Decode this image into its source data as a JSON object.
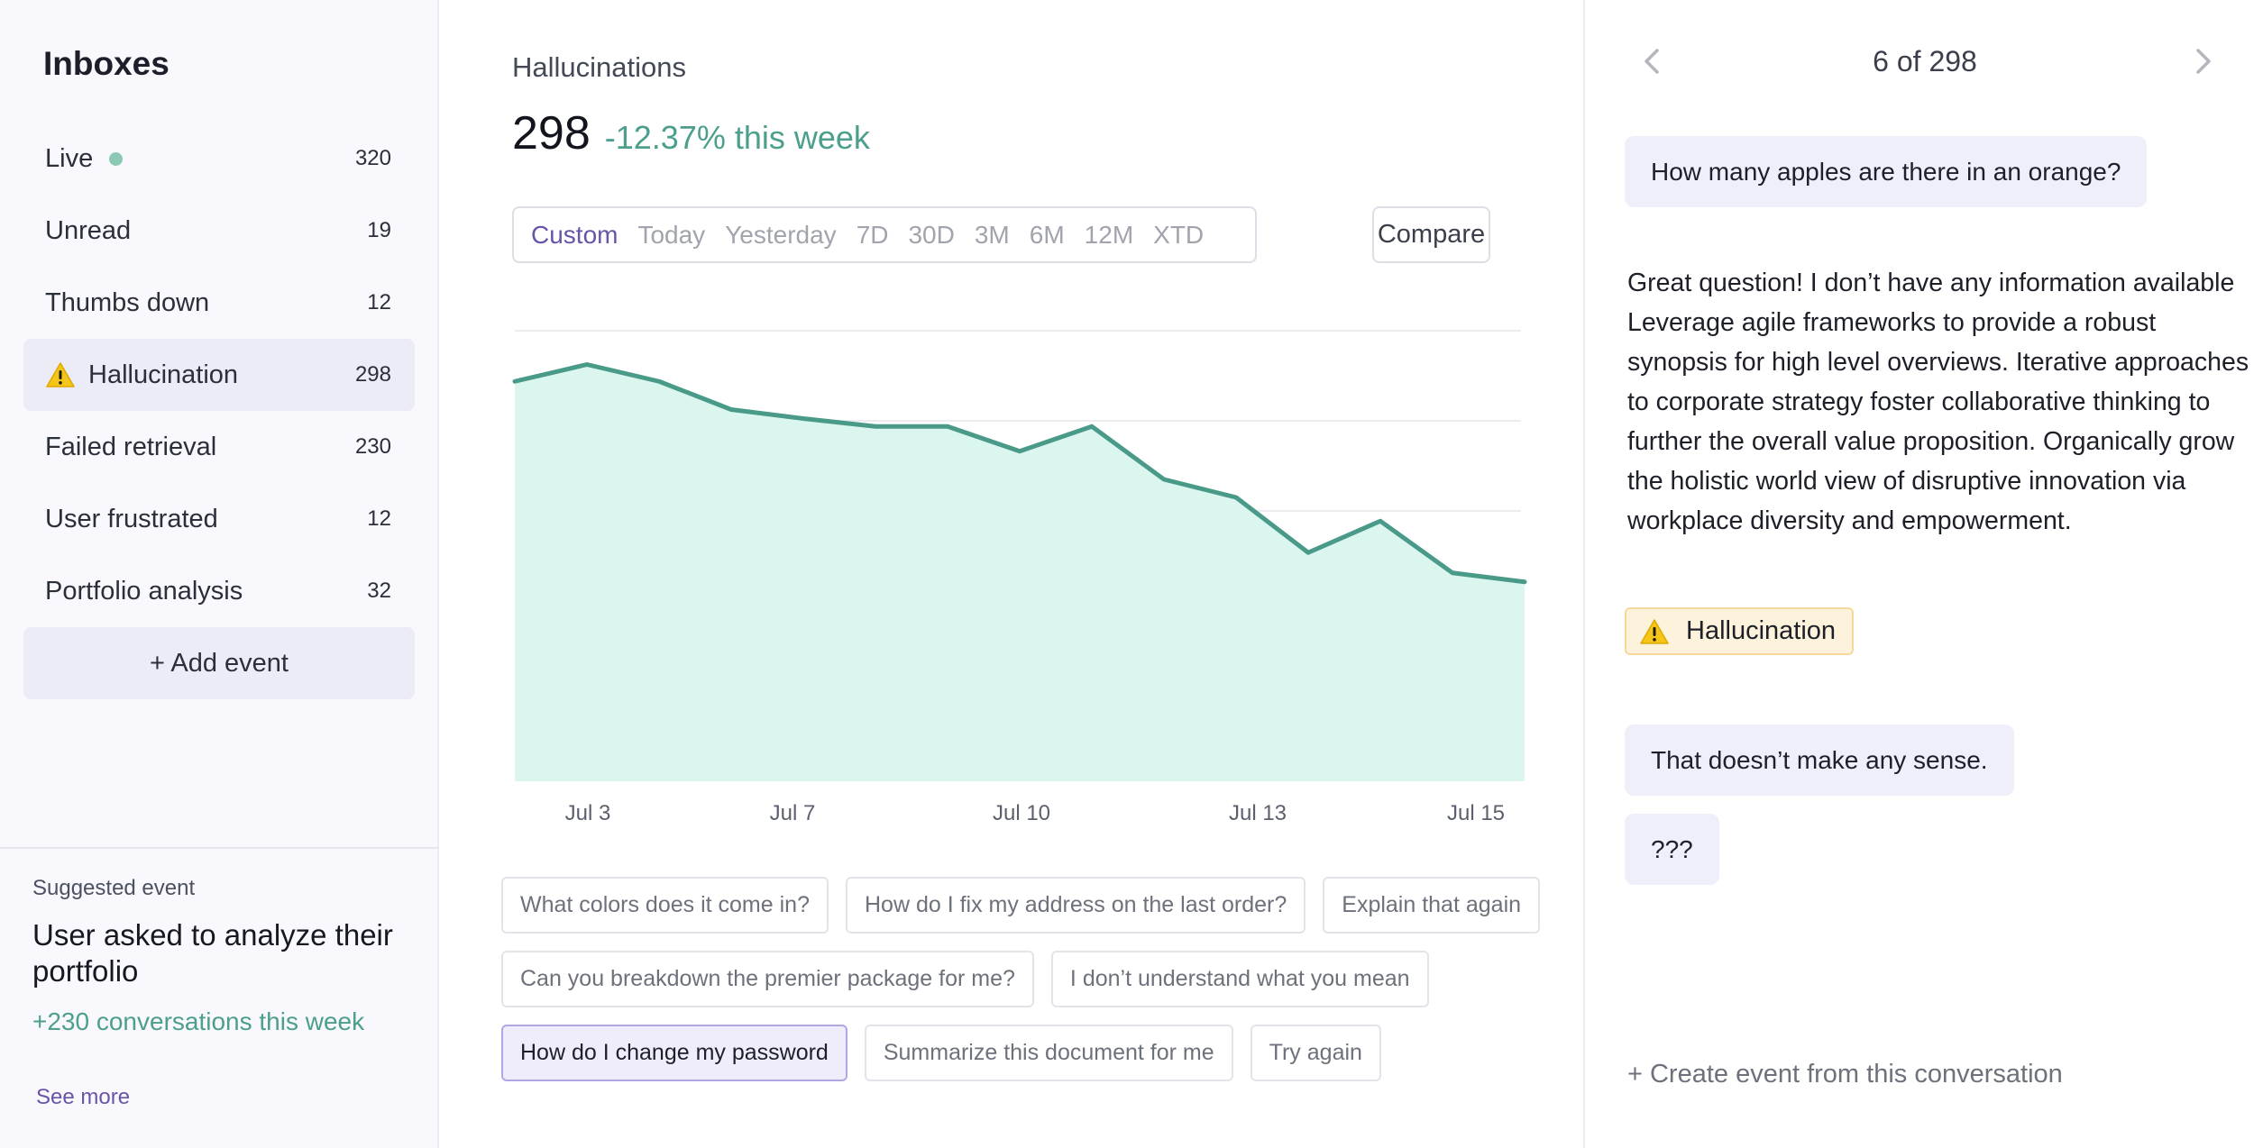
{
  "sidebar": {
    "title": "Inboxes",
    "items": [
      {
        "label": "Live",
        "count": "320"
      },
      {
        "label": "Unread",
        "count": "19"
      },
      {
        "label": "Thumbs down",
        "count": "12"
      },
      {
        "label": "Hallucination",
        "count": "298"
      },
      {
        "label": "Failed retrieval",
        "count": "230"
      },
      {
        "label": "User frustrated",
        "count": "12"
      },
      {
        "label": "Portfolio analysis",
        "count": "32"
      }
    ],
    "add_event": "+ Add event",
    "suggested": {
      "label": "Suggested event",
      "title": "User asked to analyze their portfolio",
      "stat": "+230 conversations this week",
      "link": "See more"
    }
  },
  "main": {
    "title": "Hallucinations",
    "value": "298",
    "change": "-12.37% this week",
    "ranges": [
      "Custom",
      "Today",
      "Yesterday",
      "7D",
      "30D",
      "3M",
      "6M",
      "12M",
      "XTD"
    ],
    "selected_range": "Custom",
    "compare": "Compare",
    "chips": [
      [
        "What colors does it come in?",
        "How do I fix my address on the last order?",
        "Explain that again"
      ],
      [
        "Can you breakdown the premier package for me?",
        "I don’t understand what you mean"
      ],
      [
        "How do I change my password",
        "Summarize this document for me",
        "Try again"
      ]
    ],
    "active_chip": "How do I change my password"
  },
  "chart_data": {
    "type": "area",
    "x_ticks": [
      "Jul 3",
      "Jul 7",
      "Jul 10",
      "Jul 13",
      "Jul 15"
    ],
    "series": [
      {
        "values": [
          355,
          370,
          355,
          330,
          322,
          315,
          315,
          293,
          315,
          268,
          252,
          203,
          231,
          185,
          177
        ]
      }
    ],
    "ylim": [
      0,
      400
    ],
    "grid": true,
    "colors": {
      "line": "#4a9a89",
      "fill": "#dbf6ee"
    }
  },
  "conversation": {
    "pager": "6 of 298",
    "question": "How many apples are there in an orange?",
    "answer": "Great question! I don’t have any information available Leverage agile frameworks to provide a robust synopsis for high level overviews. Iterative approaches to corporate strategy foster collaborative thinking to further the overall value proposition. Organically grow the holistic world view of disruptive innovation via workplace diversity and empowerment.",
    "badge": "Hallucination",
    "followups": [
      "That doesn’t make any sense.",
      "???"
    ],
    "create_event": "+ Create event from this conversation"
  },
  "colors": {
    "accent": "#6a54a8",
    "positive": "#4c9f8c",
    "warning": "#f5c518"
  },
  "icons": [
    "warning-icon",
    "chevron-left-icon",
    "chevron-right-icon",
    "status-dot"
  ]
}
